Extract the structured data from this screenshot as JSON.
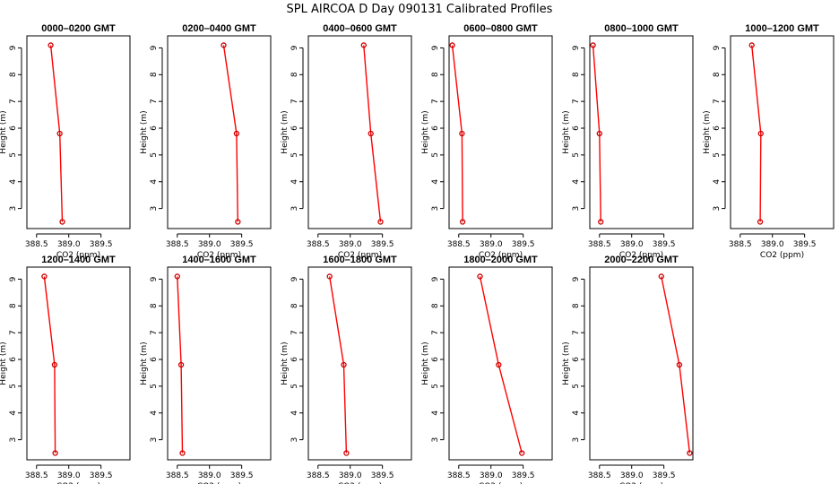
{
  "title": "SPL AIRCOA D  Day 090131  Calibrated Profiles",
  "chart_data": {
    "type": "line",
    "x_label": "CO2 (ppm)",
    "y_label": "Height (m)",
    "xlim": [
      388.35,
      389.95
    ],
    "ylim": [
      2.25,
      9.45
    ],
    "x_ticks": [
      "388.5",
      "389.0",
      "389.5"
    ],
    "y_ticks": [
      "3",
      "4",
      "5",
      "6",
      "7",
      "8",
      "9"
    ],
    "line_color": "#ff0000",
    "marker_color": "#cc0000",
    "grid": false,
    "panels": [
      {
        "title": "0000–0200 GMT",
        "points": [
          {
            "x": 388.72,
            "y": 9.1
          },
          {
            "x": 388.86,
            "y": 5.8
          },
          {
            "x": 388.9,
            "y": 2.5
          }
        ]
      },
      {
        "title": "0200–0400 GMT",
        "points": [
          {
            "x": 389.22,
            "y": 9.1
          },
          {
            "x": 389.42,
            "y": 5.8
          },
          {
            "x": 389.44,
            "y": 2.5
          }
        ]
      },
      {
        "title": "0400–0600 GMT",
        "points": [
          {
            "x": 389.21,
            "y": 9.1
          },
          {
            "x": 389.32,
            "y": 5.8
          },
          {
            "x": 389.47,
            "y": 2.5
          }
        ]
      },
      {
        "title": "0600–0800 GMT",
        "points": [
          {
            "x": 388.4,
            "y": 9.1
          },
          {
            "x": 388.55,
            "y": 5.8
          },
          {
            "x": 388.56,
            "y": 2.5
          }
        ]
      },
      {
        "title": "0800–1000 GMT",
        "points": [
          {
            "x": 388.4,
            "y": 9.1
          },
          {
            "x": 388.5,
            "y": 5.8
          },
          {
            "x": 388.52,
            "y": 2.5
          }
        ]
      },
      {
        "title": "1000–1200 GMT",
        "points": [
          {
            "x": 388.68,
            "y": 9.1
          },
          {
            "x": 388.82,
            "y": 5.8
          },
          {
            "x": 388.81,
            "y": 2.5
          }
        ]
      },
      {
        "title": "1200–1400 GMT",
        "points": [
          {
            "x": 388.62,
            "y": 9.1
          },
          {
            "x": 388.78,
            "y": 5.8
          },
          {
            "x": 388.79,
            "y": 2.5
          }
        ]
      },
      {
        "title": "1400–1600 GMT",
        "points": [
          {
            "x": 388.5,
            "y": 9.1
          },
          {
            "x": 388.56,
            "y": 5.8
          },
          {
            "x": 388.58,
            "y": 2.5
          }
        ]
      },
      {
        "title": "1600–1800 GMT",
        "points": [
          {
            "x": 388.68,
            "y": 9.1
          },
          {
            "x": 388.9,
            "y": 5.8
          },
          {
            "x": 388.94,
            "y": 2.5
          }
        ]
      },
      {
        "title": "1800–2000 GMT",
        "points": [
          {
            "x": 388.83,
            "y": 9.1
          },
          {
            "x": 389.12,
            "y": 5.8
          },
          {
            "x": 389.48,
            "y": 2.5
          }
        ]
      },
      {
        "title": "2000–2200 GMT",
        "points": [
          {
            "x": 389.46,
            "y": 9.1
          },
          {
            "x": 389.74,
            "y": 5.8
          },
          {
            "x": 389.9,
            "y": 2.5
          }
        ]
      }
    ]
  }
}
